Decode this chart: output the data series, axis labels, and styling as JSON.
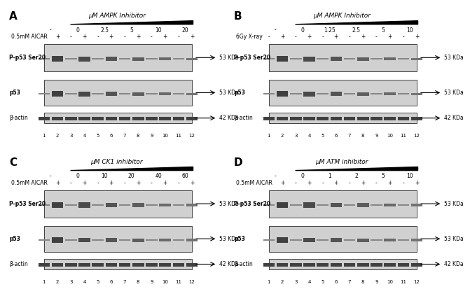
{
  "panels": [
    "A",
    "B",
    "C",
    "D"
  ],
  "panel_A": {
    "title": "μM AMPK Inhibitor",
    "concentrations": [
      "-",
      "0",
      "2.5",
      "5",
      "10",
      "20"
    ],
    "treatment_label": "0.5mM AICAR",
    "treatment_sign": [
      "-",
      "+",
      "-",
      "+",
      "-",
      "+",
      "-",
      "+",
      "-",
      "+",
      "-",
      "+"
    ],
    "blots": [
      "P-p53 Ser20",
      "p53",
      "β-actin"
    ],
    "sizes": [
      "53 KDa",
      "53 KDa",
      "42 KDa"
    ]
  },
  "panel_B": {
    "title": "μM AMPK Inhibitor",
    "concentrations": [
      "-",
      "0",
      "1.25",
      "2.5",
      "5",
      "10"
    ],
    "treatment_label": "6Gy X-ray",
    "treatment_sign": [
      "-",
      "+",
      "-",
      "+",
      "-",
      "+",
      "-",
      "+",
      "-",
      "+",
      "-",
      "+"
    ],
    "blots": [
      "P-p53 Ser20",
      "p53",
      "β-actin"
    ],
    "sizes": [
      "53 KDa",
      "53 KDa",
      "42 KDa"
    ]
  },
  "panel_C": {
    "title": "μM CK1 inhibitor",
    "concentrations": [
      "-",
      "0",
      "10",
      "20",
      "40",
      "60"
    ],
    "treatment_label": "0.5mM AICAR",
    "treatment_sign": [
      "-",
      "+",
      "-",
      "+",
      "-",
      "+",
      "-",
      "+",
      "-",
      "+",
      "-",
      "+"
    ],
    "blots": [
      "P-p53 Ser20",
      "p53",
      "β-actin"
    ],
    "sizes": [
      "53 KDa",
      "53 KDa",
      "42 KDa"
    ]
  },
  "panel_D": {
    "title": "μM ATM inhibitor",
    "concentrations": [
      "-",
      "0",
      "1",
      "2",
      "5",
      "10"
    ],
    "treatment_label": "0.5mM AICAR",
    "treatment_sign": [
      "-",
      "+",
      "-",
      "+",
      "-",
      "+",
      "-",
      "+",
      "-",
      "+",
      "-",
      "+"
    ],
    "blots": [
      "P-p53 Ser20",
      "p53",
      "β-actin"
    ],
    "sizes": [
      "53 KDa",
      "53 KDa",
      "42 KDa"
    ]
  },
  "bg_color": "#ffffff",
  "blot_bg": "#e8e8e8",
  "blot_band_color": "#555555",
  "text_color": "#000000"
}
